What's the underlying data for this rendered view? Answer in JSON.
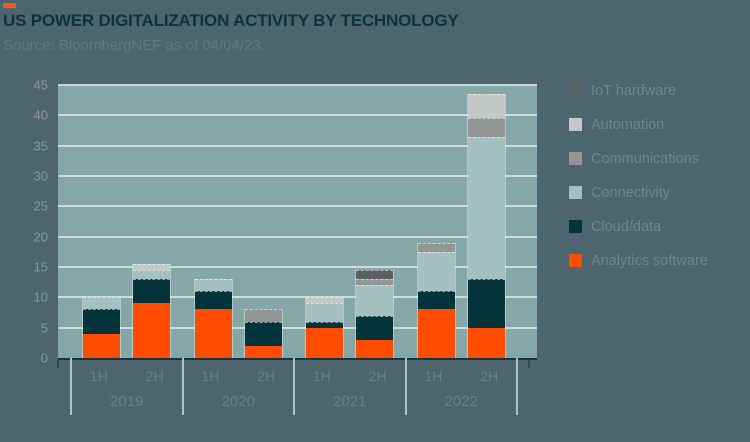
{
  "header": {
    "title": "US POWER DIGITALIZATION ACTIVITY BY TECHNOLOGY",
    "subtitle": "Source: BloombergNEF as of 04/04/23.",
    "accent_color": "#f25a22"
  },
  "chart_data": {
    "type": "bar",
    "stacked": true,
    "categories": [
      "1H",
      "2H",
      "1H",
      "2H",
      "1H",
      "2H",
      "1H",
      "2H"
    ],
    "year_groups": [
      "2019",
      "2020",
      "2021",
      "2022"
    ],
    "ylim": [
      0,
      45
    ],
    "ytick_step": 5,
    "ytick_labels": [
      "0",
      "5",
      "10",
      "15",
      "20",
      "25",
      "30",
      "35",
      "40",
      "45"
    ],
    "grid": true,
    "legend_position": "right",
    "plot_background": "#85a7a7",
    "gridline_color": "#d9e6e6",
    "series": [
      {
        "name": "Analytics software",
        "color": "#ff4c00",
        "values": [
          4,
          9,
          8,
          2,
          5,
          3,
          8,
          5
        ]
      },
      {
        "name": "Cloud/data",
        "color": "#04333a",
        "values": [
          4,
          4,
          3,
          4,
          1,
          4,
          3,
          8
        ]
      },
      {
        "name": "Connectivity",
        "color": "#a4c0c0",
        "values": [
          2,
          1.5,
          2,
          0,
          3,
          5,
          6.5,
          23.5
        ]
      },
      {
        "name": "Communications",
        "color": "#939696",
        "values": [
          0,
          0,
          0,
          2,
          0,
          1,
          1.5,
          3
        ]
      },
      {
        "name": "Automation",
        "color": "#c5c8c8",
        "values": [
          0,
          1,
          0,
          0,
          1,
          0,
          0,
          4
        ]
      },
      {
        "name": "IoT hardware",
        "color": "#5b6060",
        "values": [
          0,
          0,
          0,
          0,
          0,
          1.5,
          0,
          0
        ]
      }
    ],
    "legend_order_top_to_bottom": [
      "IoT hardware",
      "Automation",
      "Communications",
      "Connectivity",
      "Cloud/data",
      "Analytics software"
    ]
  }
}
